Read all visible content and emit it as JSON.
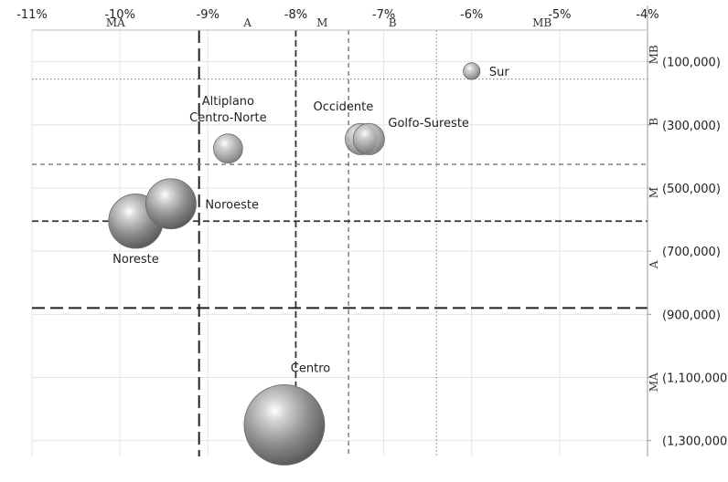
{
  "chart_data": {
    "type": "bubble",
    "x_axis": {
      "min": -0.11,
      "max": -0.04,
      "step": 0.01,
      "tick_labels": [
        "-11%",
        "-10%",
        "-9%",
        "-8%",
        "-7%",
        "-6%",
        "-5%",
        "-4%"
      ],
      "position": "top"
    },
    "y_axis": {
      "min": -1350000,
      "max": 0,
      "reversed": true,
      "position": "right",
      "tick_values": [
        -100000,
        -300000,
        -500000,
        -700000,
        -900000,
        -1100000,
        -1300000
      ],
      "tick_labels": [
        "(100,000)",
        "(300,000)",
        "(500,000)",
        "(700,000)",
        "(900,000)",
        "(1,100,000)",
        "(1,300,000)"
      ]
    },
    "grid": true,
    "x_bands": [
      {
        "label": "MA",
        "from": -0.11,
        "to": -0.091
      },
      {
        "label": "A",
        "from": -0.091,
        "to": -0.08
      },
      {
        "label": "M",
        "from": -0.08,
        "to": -0.074
      },
      {
        "label": "B",
        "from": -0.074,
        "to": -0.064
      },
      {
        "label": "MB",
        "from": -0.064,
        "to": -0.04
      }
    ],
    "y_bands": [
      {
        "label": "MB",
        "from": 0,
        "to": -155000
      },
      {
        "label": "B",
        "from": -155000,
        "to": -425000
      },
      {
        "label": "M",
        "from": -425000,
        "to": -605000
      },
      {
        "label": "A",
        "from": -605000,
        "to": -880000
      },
      {
        "label": "MA",
        "from": -880000,
        "to": -1350000
      }
    ],
    "x_thresholds": [
      {
        "value": -0.091,
        "style": "long-dash"
      },
      {
        "value": -0.08,
        "style": "dash"
      },
      {
        "value": -0.074,
        "style": "short-dash"
      },
      {
        "value": -0.064,
        "style": "dot"
      }
    ],
    "y_thresholds": [
      {
        "value": -155000,
        "style": "dot"
      },
      {
        "value": -425000,
        "style": "short-dash"
      },
      {
        "value": -605000,
        "style": "dash"
      },
      {
        "value": -880000,
        "style": "long-dash"
      }
    ],
    "points": [
      {
        "name": "Sur",
        "x": -0.06,
        "y": -130000,
        "size": 1
      },
      {
        "name": "Altiplano Centro-Norte",
        "label_lines": [
          "Altiplano",
          "Centro-Norte"
        ],
        "x": -0.0877,
        "y": -375000,
        "size": 3
      },
      {
        "name": "Occidente",
        "x": -0.0726,
        "y": -345000,
        "size": 3.5
      },
      {
        "name": "Golfo-Sureste",
        "x": -0.0717,
        "y": -345000,
        "size": 3.5
      },
      {
        "name": "Noroeste",
        "x": -0.0942,
        "y": -550000,
        "size": 9
      },
      {
        "name": "Noreste",
        "x": -0.0982,
        "y": -605000,
        "size": 10.5
      },
      {
        "name": "Centro",
        "x": -0.0813,
        "y": -1250000,
        "size": 23
      }
    ]
  }
}
